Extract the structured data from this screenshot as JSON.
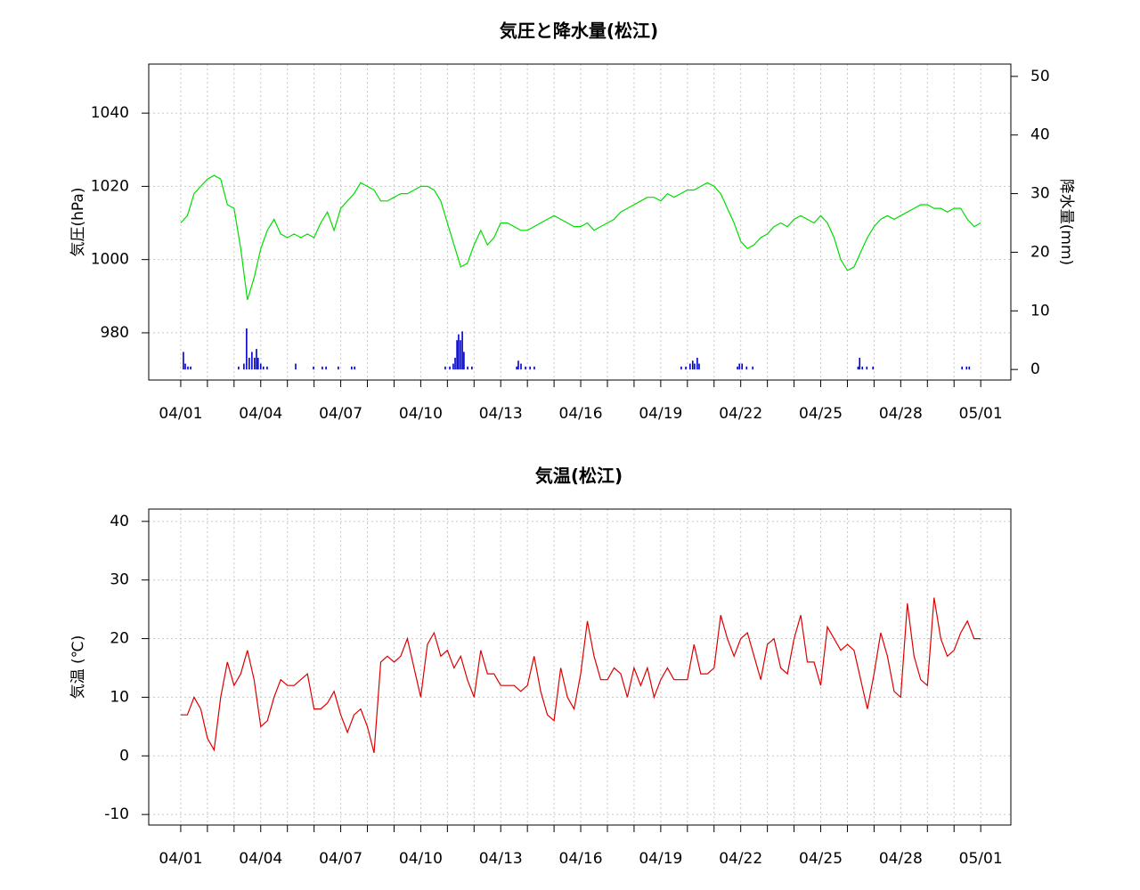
{
  "chart_data": [
    {
      "type": "combo",
      "title": "気圧と降水量(松江)",
      "ylabel": "気圧(hPa)",
      "y2label": "降水量(mm)",
      "xlim": [
        -1.2,
        31.13
      ],
      "ylim": [
        967.1,
        1053.4
      ],
      "y2lim": [
        -1.8,
        52.1
      ],
      "xticks": [
        {
          "value": 0,
          "label": "04/01"
        },
        {
          "value": 3,
          "label": "04/04"
        },
        {
          "value": 6,
          "label": "04/07"
        },
        {
          "value": 9,
          "label": "04/10"
        },
        {
          "value": 12,
          "label": "04/13"
        },
        {
          "value": 15,
          "label": "04/16"
        },
        {
          "value": 18,
          "label": "04/19"
        },
        {
          "value": 21,
          "label": "04/22"
        },
        {
          "value": 24,
          "label": "04/25"
        },
        {
          "value": 27,
          "label": "04/28"
        },
        {
          "value": 30,
          "label": "05/01"
        }
      ],
      "xminor_ticks": [
        0,
        1,
        2,
        3,
        4,
        5,
        6,
        7,
        8,
        9,
        10,
        11,
        12,
        13,
        14,
        15,
        16,
        17,
        18,
        19,
        20,
        21,
        22,
        23,
        24,
        25,
        26,
        27,
        28,
        29,
        30
      ],
      "yticks": [
        980,
        1000,
        1020,
        1040
      ],
      "y2ticks": [
        0,
        10,
        20,
        30,
        40,
        50
      ],
      "grid": true,
      "series": [
        {
          "type": "line",
          "color": "#00dd00",
          "x": [
            0,
            0.25,
            0.5,
            0.75,
            1,
            1.25,
            1.5,
            1.75,
            2,
            2.25,
            2.5,
            2.75,
            3,
            3.25,
            3.5,
            3.75,
            4,
            4.25,
            4.5,
            4.75,
            5,
            5.25,
            5.5,
            5.75,
            6,
            6.25,
            6.5,
            6.75,
            7,
            7.25,
            7.5,
            7.75,
            8,
            8.25,
            8.5,
            8.75,
            9,
            9.25,
            9.5,
            9.75,
            10,
            10.25,
            10.5,
            10.75,
            11,
            11.25,
            11.5,
            11.75,
            12,
            12.25,
            12.5,
            12.75,
            13,
            13.25,
            13.5,
            13.75,
            14,
            14.25,
            14.5,
            14.75,
            15,
            15.25,
            15.5,
            15.75,
            16,
            16.25,
            16.5,
            16.75,
            17,
            17.25,
            17.5,
            17.75,
            18,
            18.25,
            18.5,
            18.75,
            19,
            19.25,
            19.5,
            19.75,
            20,
            20.25,
            20.5,
            20.75,
            21,
            21.25,
            21.5,
            21.75,
            22,
            22.25,
            22.5,
            22.75,
            23,
            23.25,
            23.5,
            23.75,
            24,
            24.25,
            24.5,
            24.75,
            25,
            25.25,
            25.5,
            25.75,
            26,
            26.25,
            26.5,
            26.75,
            27,
            27.25,
            27.5,
            27.75,
            28,
            28.25,
            28.5,
            28.75,
            29,
            29.25,
            29.5,
            29.75,
            30
          ],
          "values": [
            1010,
            1012,
            1018,
            1020,
            1022,
            1023,
            1022,
            1015,
            1014,
            1003,
            989,
            995,
            1003,
            1008,
            1011,
            1007,
            1006,
            1007,
            1006,
            1007,
            1006,
            1010,
            1013,
            1008,
            1014,
            1016,
            1018,
            1021,
            1020,
            1019,
            1016,
            1016,
            1017,
            1018,
            1018,
            1019,
            1020,
            1020,
            1019,
            1016,
            1010,
            1004,
            998,
            999,
            1004,
            1008,
            1004,
            1006,
            1010,
            1010,
            1009,
            1008,
            1008,
            1009,
            1010,
            1011,
            1012,
            1011,
            1010,
            1009,
            1009,
            1010,
            1008,
            1009,
            1010,
            1011,
            1013,
            1014,
            1015,
            1016,
            1017,
            1017,
            1016,
            1018,
            1017,
            1018,
            1019,
            1019,
            1020,
            1021,
            1020,
            1018,
            1014,
            1010,
            1005,
            1003,
            1004,
            1006,
            1007,
            1009,
            1010,
            1009,
            1011,
            1012,
            1011,
            1010,
            1012,
            1010,
            1006,
            1000,
            997,
            998,
            1002,
            1006,
            1009,
            1011,
            1012,
            1011,
            1012,
            1013,
            1014,
            1015,
            1015,
            1014,
            1014,
            1013,
            1014,
            1014,
            1011,
            1009,
            1010
          ]
        },
        {
          "type": "bar",
          "axis": "y2",
          "color": "#0000cc",
          "x": [
            0.1,
            0.17,
            0.27,
            0.37,
            2.17,
            2.37,
            2.47,
            2.57,
            2.67,
            2.77,
            2.84,
            2.9,
            3.0,
            3.1,
            3.24,
            4.31,
            4.98,
            5.31,
            5.45,
            5.91,
            6.41,
            6.52,
            9.92,
            10.09,
            10.22,
            10.29,
            10.36,
            10.42,
            10.49,
            10.56,
            10.62,
            10.76,
            10.92,
            12.6,
            12.66,
            12.76,
            12.93,
            13.1,
            13.26,
            18.77,
            18.94,
            19.1,
            19.2,
            19.27,
            19.37,
            19.44,
            20.88,
            20.95,
            21.05,
            21.22,
            21.45,
            25.4,
            25.46,
            25.56,
            25.73,
            25.96,
            29.3,
            29.47,
            29.57
          ],
          "values": [
            3,
            1,
            0.5,
            0.5,
            0.5,
            1,
            7,
            2,
            3,
            2,
            3.5,
            2,
            1,
            0.5,
            0.5,
            1,
            0.5,
            0.5,
            0.5,
            0.5,
            0.5,
            0.5,
            0.5,
            0.5,
            1,
            2,
            5,
            6,
            5,
            6.5,
            3,
            0.5,
            0.5,
            0.5,
            1.5,
            1,
            0.5,
            0.5,
            0.5,
            0.5,
            0.5,
            1,
            1.5,
            1,
            2,
            1,
            0.5,
            1,
            1,
            0.5,
            0.5,
            0.5,
            2,
            0.5,
            0.5,
            0.5,
            0.5,
            0.5,
            0.5
          ]
        }
      ]
    },
    {
      "type": "line",
      "title": "気温(松江)",
      "ylabel": "気温 (℃)",
      "xlim": [
        -1.2,
        31.13
      ],
      "ylim": [
        -11.8,
        42.1
      ],
      "xticks": [
        {
          "value": 0,
          "label": "04/01"
        },
        {
          "value": 3,
          "label": "04/04"
        },
        {
          "value": 6,
          "label": "04/07"
        },
        {
          "value": 9,
          "label": "04/10"
        },
        {
          "value": 12,
          "label": "04/13"
        },
        {
          "value": 15,
          "label": "04/16"
        },
        {
          "value": 18,
          "label": "04/19"
        },
        {
          "value": 21,
          "label": "04/22"
        },
        {
          "value": 24,
          "label": "04/25"
        },
        {
          "value": 27,
          "label": "04/28"
        },
        {
          "value": 30,
          "label": "05/01"
        }
      ],
      "xminor_ticks": [
        0,
        1,
        2,
        3,
        4,
        5,
        6,
        7,
        8,
        9,
        10,
        11,
        12,
        13,
        14,
        15,
        16,
        17,
        18,
        19,
        20,
        21,
        22,
        23,
        24,
        25,
        26,
        27,
        28,
        29,
        30
      ],
      "yticks": [
        -10,
        0,
        10,
        20,
        30,
        40
      ],
      "grid": true,
      "series": [
        {
          "type": "line",
          "color": "#dd0000",
          "x": [
            0,
            0.25,
            0.5,
            0.75,
            1,
            1.25,
            1.5,
            1.75,
            2,
            2.25,
            2.5,
            2.75,
            3,
            3.25,
            3.5,
            3.75,
            4,
            4.25,
            4.5,
            4.75,
            5,
            5.25,
            5.5,
            5.75,
            6,
            6.25,
            6.5,
            6.75,
            7,
            7.25,
            7.5,
            7.75,
            8,
            8.25,
            8.5,
            8.75,
            9,
            9.25,
            9.5,
            9.75,
            10,
            10.25,
            10.5,
            10.75,
            11,
            11.25,
            11.5,
            11.75,
            12,
            12.25,
            12.5,
            12.75,
            13,
            13.25,
            13.5,
            13.75,
            14,
            14.25,
            14.5,
            14.75,
            15,
            15.25,
            15.5,
            15.75,
            16,
            16.25,
            16.5,
            16.75,
            17,
            17.25,
            17.5,
            17.75,
            18,
            18.25,
            18.5,
            18.75,
            19,
            19.25,
            19.5,
            19.75,
            20,
            20.25,
            20.5,
            20.75,
            21,
            21.25,
            21.5,
            21.75,
            22,
            22.25,
            22.5,
            22.75,
            23,
            23.25,
            23.5,
            23.75,
            24,
            24.25,
            24.5,
            24.75,
            25,
            25.25,
            25.5,
            25.75,
            26,
            26.25,
            26.5,
            26.75,
            27,
            27.25,
            27.5,
            27.75,
            28,
            28.25,
            28.5,
            28.75,
            29,
            29.25,
            29.5,
            29.75,
            30
          ],
          "values": [
            7,
            7,
            10,
            8,
            3,
            1,
            10,
            16,
            12,
            14,
            18,
            13,
            5,
            6,
            10,
            13,
            12,
            12,
            13,
            14,
            8,
            8,
            9,
            11,
            7,
            4,
            7,
            8,
            5,
            0.5,
            16,
            17,
            16,
            17,
            20,
            15,
            10,
            19,
            21,
            17,
            18,
            15,
            17,
            13,
            10,
            18,
            14,
            14,
            12,
            12,
            12,
            11,
            12,
            17,
            11,
            7,
            6,
            15,
            10,
            8,
            14,
            23,
            17,
            13,
            13,
            15,
            14,
            10,
            15,
            12,
            15,
            10,
            13,
            15,
            13,
            13,
            13,
            19,
            14,
            14,
            15,
            24,
            20,
            17,
            20,
            21,
            17,
            13,
            19,
            20,
            15,
            14,
            20,
            24,
            16,
            16,
            12,
            22,
            20,
            18,
            19,
            18,
            13,
            8,
            14,
            21,
            17,
            11,
            10,
            26,
            17,
            13,
            12,
            27,
            20,
            17,
            18,
            21,
            23,
            20,
            20
          ]
        }
      ]
    }
  ]
}
